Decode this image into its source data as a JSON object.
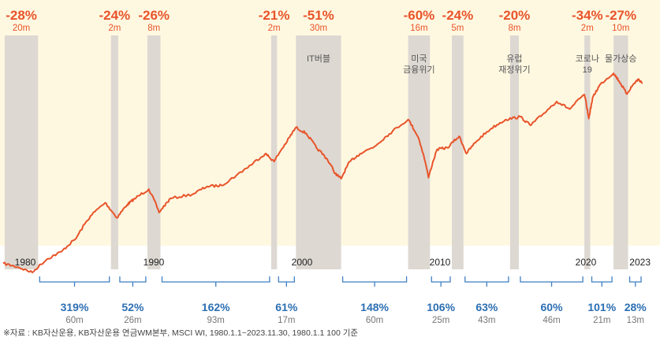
{
  "chart_data": {
    "type": "line",
    "title": "",
    "xlabel": "",
    "ylabel": "",
    "x_range": [
      1980.0,
      2023.9
    ],
    "year_ticks": [
      "1980",
      "1990",
      "2000",
      "2010",
      "2020",
      "2023"
    ],
    "series_color": "#e8542a",
    "band_color": "#ddd8d2",
    "bg_color": "#fff8e1",
    "points": [
      [
        1980.0,
        100
      ],
      [
        1981.0,
        95
      ],
      [
        1982.0,
        88
      ],
      [
        1983.0,
        106
      ],
      [
        1984.0,
        118
      ],
      [
        1985.0,
        142
      ],
      [
        1986.0,
        195
      ],
      [
        1987.0,
        235
      ],
      [
        1987.8,
        190
      ],
      [
        1988.5,
        228
      ],
      [
        1989.0,
        248
      ],
      [
        1990.0,
        285
      ],
      [
        1990.7,
        205
      ],
      [
        1991.5,
        250
      ],
      [
        1993.0,
        265
      ],
      [
        1994.0,
        296
      ],
      [
        1995.0,
        300
      ],
      [
        1996.0,
        345
      ],
      [
        1997.0,
        400
      ],
      [
        1998.0,
        470
      ],
      [
        1998.6,
        420
      ],
      [
        1999.5,
        560
      ],
      [
        2000.1,
        680
      ],
      [
        2000.8,
        625
      ],
      [
        2001.5,
        510
      ],
      [
        2002.2,
        440
      ],
      [
        2002.8,
        355
      ],
      [
        2003.2,
        330
      ],
      [
        2003.8,
        420
      ],
      [
        2004.5,
        470
      ],
      [
        2005.5,
        520
      ],
      [
        2006.5,
        620
      ],
      [
        2007.8,
        760
      ],
      [
        2008.5,
        590
      ],
      [
        2009.2,
        335
      ],
      [
        2009.8,
        500
      ],
      [
        2010.5,
        510
      ],
      [
        2011.3,
        600
      ],
      [
        2011.8,
        470
      ],
      [
        2012.5,
        560
      ],
      [
        2013.5,
        670
      ],
      [
        2014.5,
        760
      ],
      [
        2015.5,
        790
      ],
      [
        2016.2,
        700
      ],
      [
        2017.0,
        810
      ],
      [
        2018.0,
        980
      ],
      [
        2018.9,
        880
      ],
      [
        2019.9,
        1080
      ],
      [
        2020.2,
        770
      ],
      [
        2020.5,
        1050
      ],
      [
        2021.0,
        1250
      ],
      [
        2021.9,
        1460
      ],
      [
        2022.3,
        1300
      ],
      [
        2022.8,
        1090
      ],
      [
        2023.3,
        1260
      ],
      [
        2023.6,
        1340
      ],
      [
        2023.9,
        1270
      ]
    ],
    "drawdowns": [
      {
        "start": 1980.1,
        "end": 1982.4,
        "pct": "-28%",
        "dur": "20m",
        "label": ""
      },
      {
        "start": 1987.4,
        "end": 1987.9,
        "pct": "-24%",
        "dur": "2m",
        "label": ""
      },
      {
        "start": 1989.9,
        "end": 1990.8,
        "pct": "-26%",
        "dur": "8m",
        "label": ""
      },
      {
        "start": 1998.4,
        "end": 1998.8,
        "pct": "-21%",
        "dur": "2m",
        "label": ""
      },
      {
        "start": 2000.1,
        "end": 2003.2,
        "pct": "-51%",
        "dur": "30m",
        "label": "IT버블"
      },
      {
        "start": 2007.8,
        "end": 2009.3,
        "pct": "-60%",
        "dur": "16m",
        "label": "미국\n금융위기"
      },
      {
        "start": 2010.8,
        "end": 2011.6,
        "pct": "-24%",
        "dur": "5m",
        "label": ""
      },
      {
        "start": 2014.8,
        "end": 2015.4,
        "pct": "-20%",
        "dur": "8m",
        "label": "유럽\n재정위기"
      },
      {
        "start": 2019.9,
        "end": 2020.3,
        "pct": "-34%",
        "dur": "2m",
        "label": "코로나\n19"
      },
      {
        "start": 2021.9,
        "end": 2022.9,
        "pct": "-27%",
        "dur": "10m",
        "label": "물가상승"
      }
    ],
    "rallies": [
      {
        "start": 1982.4,
        "end": 1987.4,
        "pct": "319%",
        "dur": "60m"
      },
      {
        "start": 1987.9,
        "end": 1989.9,
        "pct": "52%",
        "dur": "26m"
      },
      {
        "start": 1990.8,
        "end": 1998.4,
        "pct": "162%",
        "dur": "93m"
      },
      {
        "start": 1998.8,
        "end": 2000.1,
        "pct": "61%",
        "dur": "17m"
      },
      {
        "start": 2003.2,
        "end": 2007.8,
        "pct": "148%",
        "dur": "60m"
      },
      {
        "start": 2009.3,
        "end": 2010.8,
        "pct": "106%",
        "dur": "25m"
      },
      {
        "start": 2011.6,
        "end": 2014.8,
        "pct": "63%",
        "dur": "43m"
      },
      {
        "start": 2015.4,
        "end": 2019.9,
        "pct": "60%",
        "dur": "46m"
      },
      {
        "start": 2020.3,
        "end": 2021.9,
        "pct": "101%",
        "dur": "21m"
      },
      {
        "start": 2022.9,
        "end": 2023.9,
        "pct": "28%",
        "dur": "13m"
      }
    ]
  },
  "source_note": "※자료 : KB자산운용, KB자산운용 연금WM본부, MSCI WI, 1980.1.1~2023.11.30, 1980.1.1 100 기준"
}
